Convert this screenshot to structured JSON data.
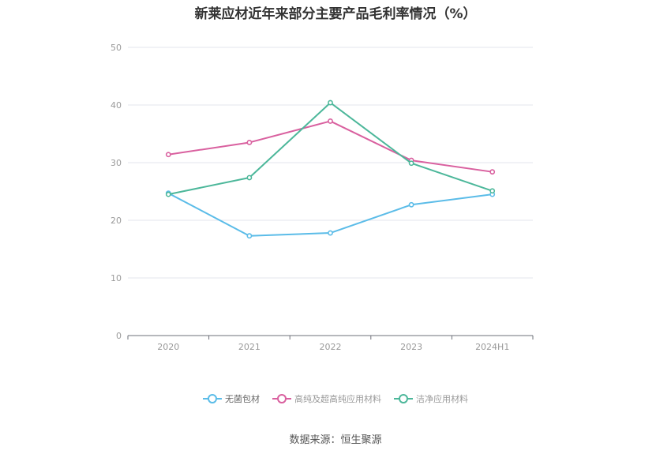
{
  "chart_data": {
    "type": "line",
    "title": "新莱应材近年来部分主要产品毛利率情况（%）",
    "categories": [
      "2020",
      "2021",
      "2022",
      "2023",
      "2024H1"
    ],
    "ylim": [
      0,
      50
    ],
    "yticks": [
      0,
      10,
      20,
      30,
      40,
      50
    ],
    "grid": true,
    "legend_position": "bottom",
    "series": [
      {
        "name": "无菌包材",
        "color": "#5bbce8",
        "values": [
          24.7,
          17.3,
          17.8,
          22.7,
          24.5
        ]
      },
      {
        "name": "高纯及超高纯应用材料",
        "color": "#d9609f",
        "values": [
          31.4,
          33.5,
          37.2,
          30.4,
          28.4
        ]
      },
      {
        "name": "洁净应用材料",
        "color": "#4cb79a",
        "values": [
          24.5,
          27.4,
          40.4,
          29.9,
          25.1
        ]
      }
    ]
  },
  "source_note": "数据来源：恒生聚源"
}
